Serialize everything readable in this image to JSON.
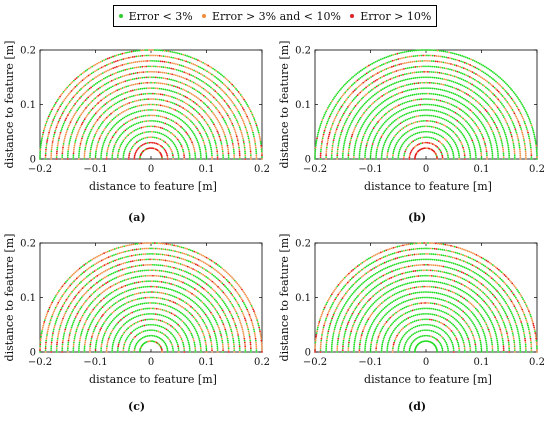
{
  "legend": {
    "items": [
      {
        "label": "Error < 3%",
        "color": "#2ecc2e"
      },
      {
        "label": "Error > 3% and < 10%",
        "color": "#f08c3c"
      },
      {
        "label": "Error > 10%",
        "color": "#e02020"
      }
    ]
  },
  "colors": {
    "green": "#22dd22",
    "orange": "#f0924a",
    "red": "#e41e1e"
  },
  "chart_data": [
    {
      "type": "scatter",
      "panel": "a",
      "caption": "(a)",
      "xlabel": "distance to feature [m]",
      "ylabel": "distance to feature [m]",
      "xlim": [
        -0.2,
        0.2
      ],
      "ylim": [
        0,
        0.2
      ],
      "xticks": [
        "−0.2",
        "−0.1",
        "0",
        "0.1",
        "0.2"
      ],
      "yticks": [
        "0",
        "0.1",
        "0.2"
      ],
      "radii": [
        0.02,
        0.03,
        0.04,
        0.05,
        0.06,
        0.07,
        0.08,
        0.09,
        0.1,
        0.11,
        0.12,
        0.13,
        0.14,
        0.15,
        0.16,
        0.17,
        0.18,
        0.19,
        0.2
      ],
      "arc_error": [
        "red",
        "red",
        "mixed",
        "green",
        "mixed",
        "green",
        "mixed",
        "green",
        "mixed",
        "mixed",
        "mixed",
        "mixed",
        "orange",
        "mixed",
        "orange",
        "mixed",
        "orange",
        "orange",
        "mixed"
      ]
    },
    {
      "type": "scatter",
      "panel": "b",
      "caption": "(b)",
      "xlabel": "distance to feature [m]",
      "ylabel": "distance to feature [m]",
      "xlim": [
        -0.2,
        0.2
      ],
      "ylim": [
        0,
        0.2
      ],
      "xticks": [
        "−0.2",
        "−0.1",
        "0",
        "0.1",
        "0.2"
      ],
      "yticks": [
        "0",
        "0.1",
        "0.2"
      ],
      "radii": [
        0.02,
        0.03,
        0.04,
        0.05,
        0.06,
        0.07,
        0.08,
        0.09,
        0.1,
        0.11,
        0.12,
        0.13,
        0.14,
        0.15,
        0.16,
        0.17,
        0.18,
        0.19,
        0.2
      ],
      "arc_error": [
        "red",
        "red",
        "mixed",
        "green",
        "green",
        "mixed",
        "green",
        "green",
        "green",
        "mixed",
        "green",
        "green",
        "mixed",
        "green",
        "mixed",
        "mixed",
        "orange",
        "mixed",
        "green"
      ]
    },
    {
      "type": "scatter",
      "panel": "c",
      "caption": "(c)",
      "xlabel": "distance to feature [m]",
      "ylabel": "distance to feature [m]",
      "xlim": [
        -0.2,
        0.2
      ],
      "ylim": [
        0,
        0.2
      ],
      "xticks": [
        "−0.2",
        "−0.1",
        "0",
        "0.1",
        "0.2"
      ],
      "yticks": [
        "0",
        "0.1",
        "0.2"
      ],
      "radii": [
        0.02,
        0.03,
        0.04,
        0.05,
        0.06,
        0.07,
        0.08,
        0.09,
        0.1,
        0.11,
        0.12,
        0.13,
        0.14,
        0.15,
        0.16,
        0.17,
        0.18,
        0.19,
        0.2
      ],
      "arc_error": [
        "mixed",
        "green",
        "green",
        "green",
        "mixed",
        "green",
        "mixed",
        "green",
        "mixed",
        "mixed",
        "green",
        "mixed",
        "mixed",
        "mixed",
        "mixed",
        "orange",
        "mixed",
        "orange",
        "orange"
      ]
    },
    {
      "type": "scatter",
      "panel": "d",
      "caption": "(d)",
      "xlabel": "distance to feature [m]",
      "ylabel": "distance to feature [m]",
      "xlim": [
        -0.2,
        0.2
      ],
      "ylim": [
        0,
        0.2
      ],
      "xticks": [
        "−0.2",
        "−0.1",
        "0",
        "0.1",
        "0.2"
      ],
      "yticks": [
        "0",
        "0.1",
        "0.2"
      ],
      "radii": [
        0.02,
        0.03,
        0.04,
        0.05,
        0.06,
        0.07,
        0.08,
        0.09,
        0.1,
        0.11,
        0.12,
        0.13,
        0.14,
        0.15,
        0.16,
        0.17,
        0.18,
        0.19,
        0.2
      ],
      "arc_error": [
        "green",
        "green",
        "green",
        "green",
        "mixed",
        "green",
        "green",
        "mixed",
        "green",
        "green",
        "mixed",
        "green",
        "mixed",
        "mixed",
        "mixed",
        "green",
        "mixed",
        "mixed",
        "orange"
      ]
    }
  ]
}
